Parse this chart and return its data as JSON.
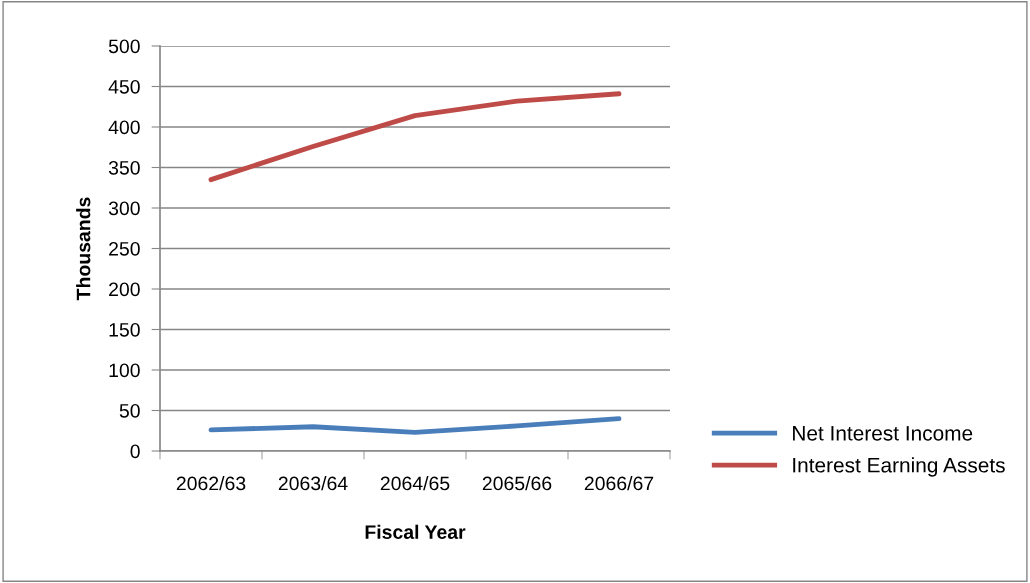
{
  "chart_data": {
    "type": "line",
    "xlabel": "Fiscal Year",
    "ylabel": "Thousands",
    "categories": [
      "2062/63",
      "2063/64",
      "2064/65",
      "2065/66",
      "2066/67"
    ],
    "series": [
      {
        "name": "Net Interest Income",
        "color": "#4a7ebb",
        "values": [
          26,
          30,
          23,
          31,
          40
        ]
      },
      {
        "name": "Interest Earning Assets",
        "color": "#be4b48",
        "values": [
          335,
          376,
          414,
          432,
          441
        ]
      }
    ],
    "ylim": [
      0,
      500
    ],
    "yticks": [
      0,
      50,
      100,
      150,
      200,
      250,
      300,
      350,
      400,
      450,
      500
    ],
    "grid": "y",
    "legend": "right",
    "marker": "none",
    "line_style": "solid"
  }
}
